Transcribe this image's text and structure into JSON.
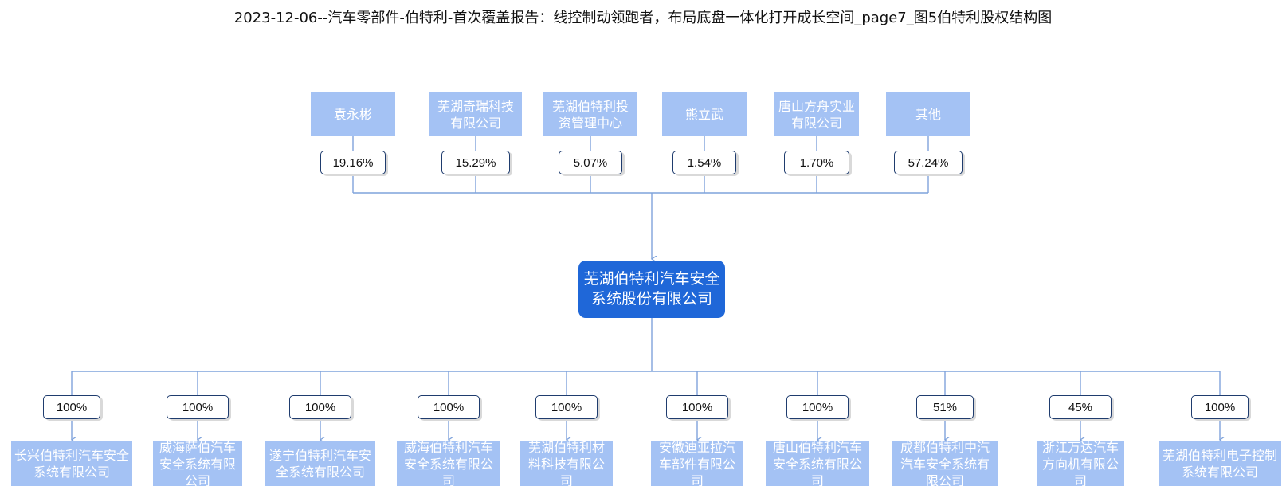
{
  "title": "2023-12-06--汽车零部件-伯特利-首次覆盖报告：线控制动领跑者，布局底盘一体化打开成长空间_page7_图5伯特利股权结构图",
  "colors": {
    "box_light": "#a4c2f4",
    "box_center": "#1f67d8",
    "line": "#7fa3dc",
    "pct_border": "#1f3c6e"
  },
  "shareholders": [
    {
      "name": "袁永彬",
      "pct": "19.16%"
    },
    {
      "name": "芜湖奇瑞科技有限公司",
      "pct": "15.29%"
    },
    {
      "name": "芜湖伯特利投资管理中心",
      "pct": "5.07%"
    },
    {
      "name": "熊立武",
      "pct": "1.54%"
    },
    {
      "name": "唐山方舟实业有限公司",
      "pct": "1.70%"
    },
    {
      "name": "其他",
      "pct": "57.24%"
    }
  ],
  "company": {
    "name": "芜湖伯特利汽车安全系统股份有限公司"
  },
  "subsidiaries": [
    {
      "name": "长兴伯特利汽车安全系统有限公司",
      "pct": "100%"
    },
    {
      "name": "威海萨伯汽车安全系统有限公司",
      "pct": "100%"
    },
    {
      "name": "遂宁伯特利汽车安全系统有限公司",
      "pct": "100%"
    },
    {
      "name": "威海伯特利汽车安全系统有限公司",
      "pct": "100%"
    },
    {
      "name": "芜湖伯特利材料科技有限公司",
      "pct": "100%"
    },
    {
      "name": "安徽迪亚拉汽车部件有限公司",
      "pct": "100%"
    },
    {
      "name": "唐山伯特利汽车安全系统有限公司",
      "pct": "100%"
    },
    {
      "name": "成都伯特利中汽汽车安全系统有限公司",
      "pct": "51%"
    },
    {
      "name": "浙江万达汽车方向机有限公司",
      "pct": "45%"
    },
    {
      "name": "芜湖伯特利电子控制系统有限公司",
      "pct": "100%"
    }
  ]
}
